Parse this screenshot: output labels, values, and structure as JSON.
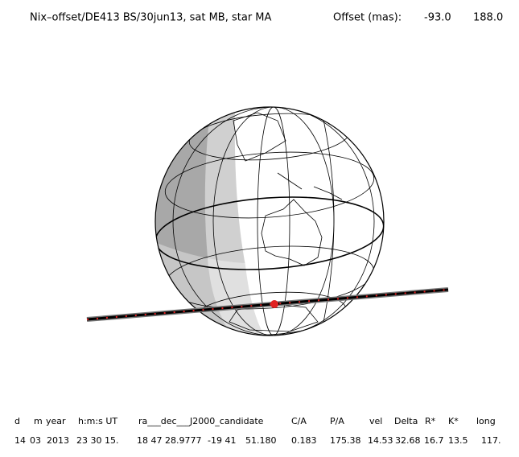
{
  "header": {
    "title": "Nix–offset/DE413 BS/30jun13, sat MB, star MA",
    "offset_label": "Offset (mas):",
    "offset_values": [
      "-93.0",
      "188.0"
    ]
  },
  "table": {
    "columns": [
      "d",
      "m",
      "year",
      "h:m:s UT",
      "ra___dec___J2000_candidate",
      "C/A",
      "P/A",
      "vel",
      "Delta",
      "R*",
      "K*",
      "long"
    ],
    "values": [
      "14",
      "03",
      "2013",
      "23 30 15.",
      "18 47 28.9777",
      "-19 41",
      "51.180",
      "0.183",
      "175.38",
      "14.53",
      "32.68",
      "16.7",
      "13.5",
      "117."
    ]
  }
}
